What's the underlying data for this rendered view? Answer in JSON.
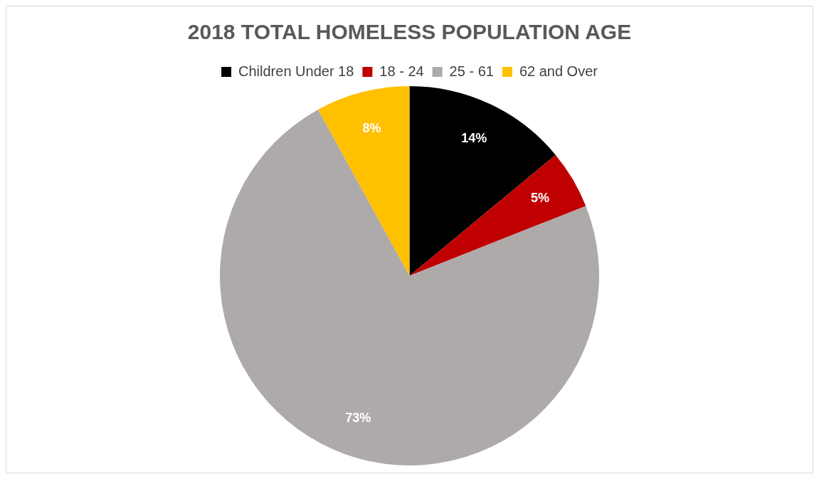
{
  "chart_data": {
    "type": "pie",
    "title": "2018 TOTAL HOMELESS POPULATION AGE",
    "categories": [
      "Children Under 18",
      "18 - 24",
      "25 - 61",
      "62 and Over"
    ],
    "values": [
      14,
      5,
      73,
      8
    ],
    "colors": [
      "#000000",
      "#c00000",
      "#aeaaaa",
      "#ffc000"
    ],
    "value_labels": [
      "14%",
      "5%",
      "73%",
      "8%"
    ],
    "legend": "top"
  }
}
